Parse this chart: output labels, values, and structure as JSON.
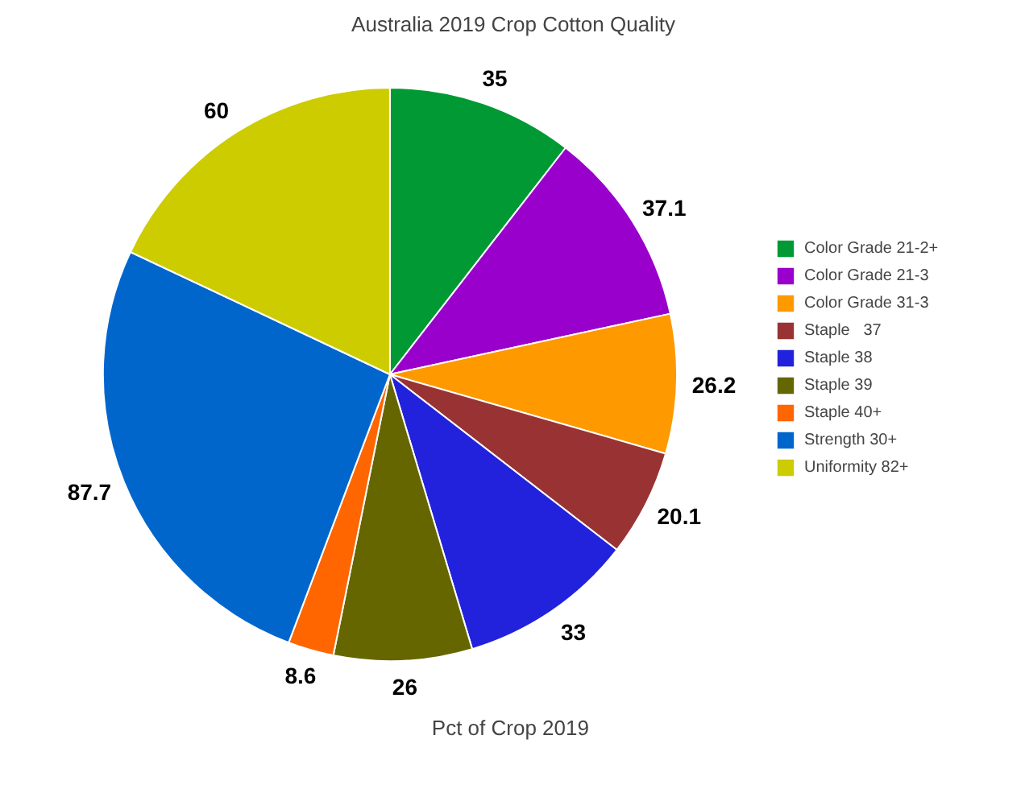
{
  "chart_data": {
    "type": "pie",
    "title": "Australia 2019 Crop Cotton Quality",
    "categories": [
      "Color Grade 21-2+",
      "Color Grade 21-3",
      "Color Grade 31-3",
      "Staple   37",
      "Staple 38",
      "Staple 39",
      "Staple 40+",
      "Strength 30+",
      "Uniformity 82+"
    ],
    "values": [
      35,
      37.1,
      26.2,
      20.1,
      33,
      26,
      8.6,
      87.7,
      60
    ],
    "colors": [
      "#009933",
      "#9900cc",
      "#ff9900",
      "#993333",
      "#2222dd",
      "#666600",
      "#ff6600",
      "#0066cc",
      "#cccc00"
    ],
    "data_labels": true,
    "legend": "right",
    "annotations": [
      "Pct of Crop  2019"
    ]
  }
}
